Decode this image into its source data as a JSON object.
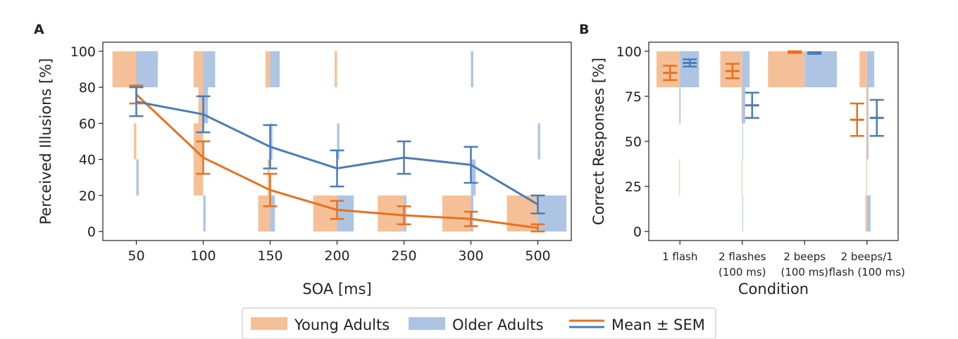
{
  "chart_data": [
    {
      "panel_label": "A",
      "type": "histogram-line",
      "xlabel": "SOA [ms]",
      "ylabel": "Perceived Illusions [%]",
      "ylim": [
        -5,
        105
      ],
      "yticks": [
        0,
        20,
        40,
        60,
        80,
        100
      ],
      "categories": [
        "50",
        "100",
        "150",
        "200",
        "250",
        "300",
        "500"
      ],
      "bin_edges": [
        0,
        20,
        40,
        60,
        80,
        100
      ],
      "young_hist": [
        [
          0,
          0,
          1,
          0,
          10
        ],
        [
          0,
          4,
          4,
          2,
          4
        ],
        [
          5,
          1,
          0,
          0,
          2
        ],
        [
          10,
          0,
          0,
          0,
          1
        ],
        [
          11,
          0,
          0,
          0,
          0
        ],
        [
          12,
          0,
          0,
          0,
          0
        ],
        [
          13,
          0,
          0,
          0,
          0
        ]
      ],
      "older_hist": [
        [
          0,
          1,
          0,
          0,
          9
        ],
        [
          1,
          0,
          0,
          2,
          5
        ],
        [
          2,
          0,
          1,
          0,
          4
        ],
        [
          7,
          0,
          1,
          0,
          0
        ],
        [
          1,
          0,
          0,
          0,
          0
        ],
        [
          1,
          2,
          0,
          0,
          1
        ],
        [
          12,
          0,
          1,
          0,
          0
        ]
      ],
      "series": [
        {
          "name": "Young Adults",
          "values": [
            76,
            41,
            23,
            12,
            9,
            7,
            2
          ],
          "sem": [
            5,
            9,
            9,
            5,
            5,
            4,
            2
          ]
        },
        {
          "name": "Older Adults",
          "values": [
            72,
            65,
            47,
            35,
            41,
            37,
            15
          ],
          "sem": [
            8,
            10,
            12,
            10,
            9,
            10,
            5
          ]
        }
      ]
    },
    {
      "panel_label": "B",
      "type": "histogram-errorbar",
      "xlabel": "Condition",
      "ylabel": "Correct Responses [%]",
      "ylim": [
        -5,
        105
      ],
      "yticks": [
        0,
        25,
        50,
        75,
        100
      ],
      "categories": [
        [
          "1 flash"
        ],
        [
          "2 flashes",
          "(100 ms)"
        ],
        [
          "2 beeps",
          "(100 ms)"
        ],
        [
          "2 beeps/1",
          "flash (100 ms)"
        ]
      ],
      "bin_edges": [
        0,
        20,
        40,
        60,
        80,
        100
      ],
      "young_hist": [
        [
          0,
          1,
          0,
          1,
          32
        ],
        [
          0,
          1,
          0,
          1,
          30
        ],
        [
          0,
          0,
          0,
          0,
          50
        ],
        [
          2,
          1,
          1,
          1,
          10
        ]
      ],
      "older_hist": [
        [
          0,
          0,
          0,
          1,
          26
        ],
        [
          1,
          0,
          1,
          4,
          10
        ],
        [
          0,
          0,
          0,
          0,
          44
        ],
        [
          5,
          0,
          2,
          2,
          10
        ]
      ],
      "series": [
        {
          "name": "Young Adults",
          "values": [
            88,
            89,
            99.5,
            62
          ],
          "sem": [
            4,
            4,
            0.5,
            9
          ]
        },
        {
          "name": "Older Adults",
          "values": [
            93.5,
            70,
            99,
            63
          ],
          "sem": [
            2,
            7,
            0.5,
            10
          ]
        }
      ]
    }
  ],
  "legend": [
    {
      "label": "Young Adults",
      "kind": "patch",
      "color": "#f5c097"
    },
    {
      "label": "Older Adults",
      "kind": "patch",
      "color": "#adc5e3"
    },
    {
      "label": "Mean ± SEM",
      "kind": "lines",
      "colors": [
        "#e8711e",
        "#4a7cb8"
      ]
    }
  ],
  "colors": {
    "young_fill": "#f5c097",
    "older_fill": "#adc5e3",
    "young_line": "#e8711e",
    "older_line": "#4a7cb8"
  }
}
